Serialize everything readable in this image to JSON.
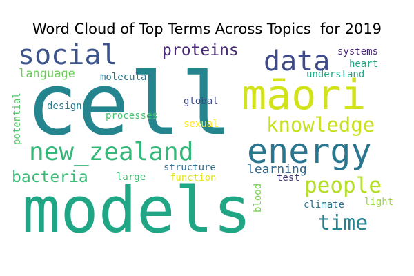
{
  "chart_data": {
    "type": "wordcloud",
    "title": "Word Cloud of Top Terms Across Topics  for 2019",
    "words": [
      {
        "text": "cell",
        "color": "#25858e"
      },
      {
        "text": "models",
        "color": "#21a685"
      },
      {
        "text": "māori",
        "color": "#d2e21b"
      },
      {
        "text": "energy",
        "color": "#2a768e"
      },
      {
        "text": "new_zealand",
        "color": "#35b779"
      },
      {
        "text": "social",
        "color": "#3b528b"
      },
      {
        "text": "data",
        "color": "#3e4a89"
      },
      {
        "text": "knowledge",
        "color": "#c8e020"
      },
      {
        "text": "people",
        "color": "#b5de2b"
      },
      {
        "text": "time",
        "color": "#26828e"
      },
      {
        "text": "proteins",
        "color": "#482878"
      },
      {
        "text": "bacteria",
        "color": "#3aba76"
      },
      {
        "text": "language",
        "color": "#6ccd5a"
      },
      {
        "text": "learning",
        "color": "#31688e"
      },
      {
        "text": "molecular",
        "color": "#2c738e"
      },
      {
        "text": "understand",
        "color": "#22a884"
      },
      {
        "text": "systems",
        "color": "#482475"
      },
      {
        "text": "heart",
        "color": "#22a785"
      },
      {
        "text": "global",
        "color": "#3e4989"
      },
      {
        "text": "design",
        "color": "#287c8e"
      },
      {
        "text": "processes",
        "color": "#4ac16d"
      },
      {
        "text": "sexual",
        "color": "#fde725"
      },
      {
        "text": "potential",
        "color": "#56c667"
      },
      {
        "text": "structure",
        "color": "#2e6f8e"
      },
      {
        "text": "large",
        "color": "#3dbc74"
      },
      {
        "text": "function",
        "color": "#e5e419"
      },
      {
        "text": "test",
        "color": "#443a83"
      },
      {
        "text": "blood",
        "color": "#7ad151"
      },
      {
        "text": "climate",
        "color": "#2c728e"
      },
      {
        "text": "light",
        "color": "#9bd93c"
      }
    ]
  }
}
